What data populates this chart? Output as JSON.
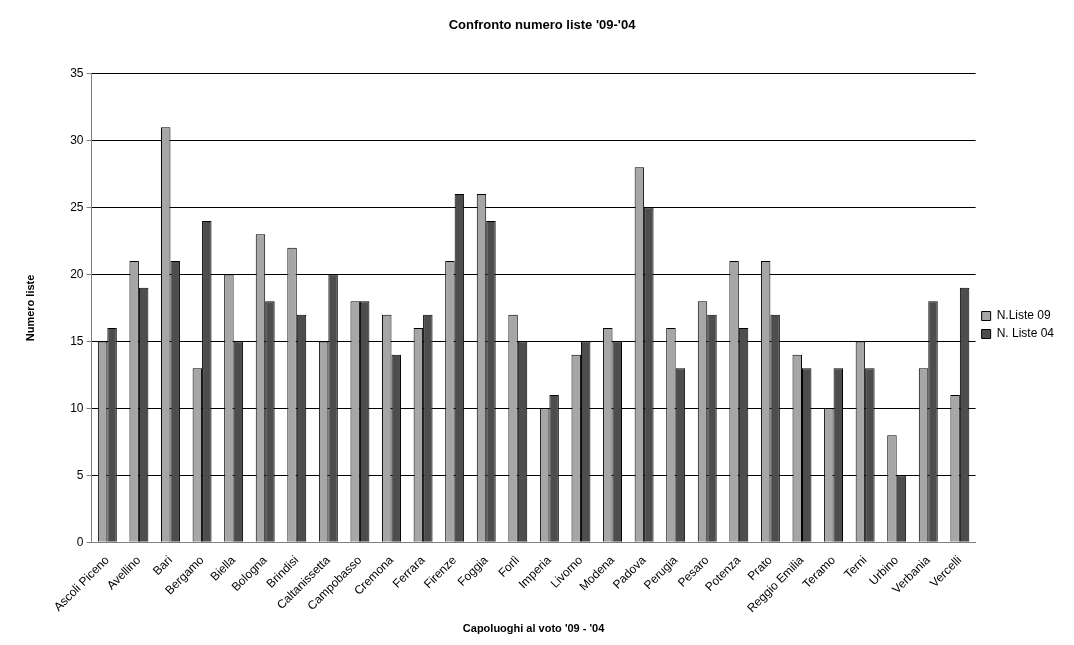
{
  "chart_data": {
    "type": "bar",
    "title": "Confronto numero liste '09-'04",
    "xlabel": "Capoluoghi al voto '09 - '04",
    "ylabel": "Numero liste",
    "categories": [
      "Ascoli Piceno",
      "Avellino",
      "Bari",
      "Bergamo",
      "Biella",
      "Bologna",
      "Brindisi",
      "Caltanissetta",
      "Campobasso",
      "Cremona",
      "Ferrara",
      "Firenze",
      "Foggia",
      "Forlì",
      "Imperia",
      "Livorno",
      "Modena",
      "Padova",
      "Perugia",
      "Pesaro",
      "Potenza",
      "Prato",
      "Reggio Emilia",
      "Teramo",
      "Terni",
      "Urbino",
      "Verbania",
      "Vercelli"
    ],
    "series": [
      {
        "name": "N.Liste 09",
        "color": "#a6a6a6",
        "values": [
          15,
          21,
          31,
          13,
          20,
          23,
          22,
          15,
          18,
          17,
          16,
          21,
          26,
          17,
          10,
          14,
          16,
          28,
          16,
          18,
          21,
          21,
          14,
          10,
          15,
          8,
          13,
          11
        ]
      },
      {
        "name": "N. Liste 04",
        "color": "#4d4d4d",
        "values": [
          16,
          19,
          21,
          24,
          15,
          18,
          17,
          20,
          18,
          14,
          17,
          26,
          24,
          15,
          11,
          15,
          15,
          25,
          13,
          17,
          16,
          17,
          13,
          13,
          13,
          5,
          18,
          19
        ]
      }
    ],
    "ylim": [
      0,
      35
    ],
    "yticks": [
      0,
      5,
      10,
      15,
      20,
      25,
      30,
      35
    ],
    "grid": "y",
    "legend": "right"
  }
}
